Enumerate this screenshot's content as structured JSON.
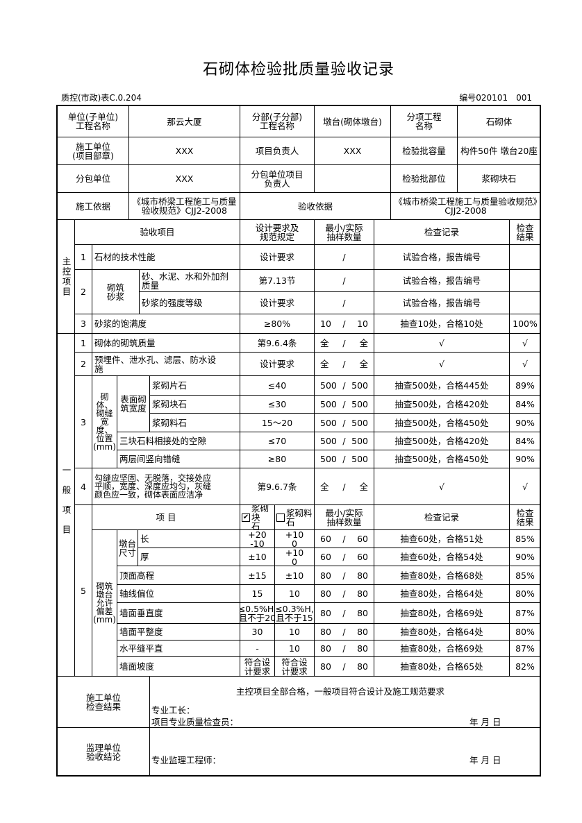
{
  "title": "石砌体检验批质量验收记录",
  "form_code": "质控(市政)表C.0.204",
  "serial": "编号020101　001",
  "info": {
    "unit_label": "单位(子单位)\n工程名称",
    "unit_value": "那云大厦",
    "division_label": "分部(子分部)\n工程名称",
    "division_value": "墩台(砌体墩台)",
    "subitem_label": "分项工程\n名称",
    "subitem_value": "石砌体",
    "contractor_label": "施工单位\n(项目部章)",
    "contractor_value": "XXX",
    "pm_label": "项目负责人",
    "pm_value": "XXX",
    "capacity_label": "检验批容量",
    "capacity_value": "构件50件  墩台20座",
    "sub_label": "分包单位",
    "sub_value": "XXX",
    "sub_pm_label": "分包单位项目\n负责人",
    "sub_pm_value": "",
    "part_label": "检验批部位",
    "part_value": "浆砌块石",
    "basis_label": "施工依据",
    "basis_value": "《城市桥梁工程施工与质量验收规范》CJJ2-2008",
    "accept_label": "验收依据",
    "accept_value": "《城市桥梁工程施工与质量验收规范》CJJ2-2008"
  },
  "columns": {
    "item": "验收项目",
    "design": "设计要求及\n规范规定",
    "sample": "最小/实际\n抽样数量",
    "record": "检查记录",
    "result": "检查\n结果",
    "sep": "/"
  },
  "main_control": {
    "label": "主控项目",
    "rows": [
      {
        "no": "1",
        "item": "石材的技术性能",
        "design": "设计要求",
        "sample": "/",
        "record": "试验合格，报告编号",
        "result": ""
      },
      {
        "no": "2",
        "group": "砌筑\n砂浆",
        "subs": [
          {
            "item": "砂、水泥、水和外加剂\n质量",
            "design": "第7.13节",
            "sample": "/",
            "record": "试验合格，报告编号",
            "result": ""
          },
          {
            "item": "砂浆的强度等级",
            "design": "设计要求",
            "sample": "/",
            "record": "试验合格，报告编号",
            "result": ""
          }
        ]
      },
      {
        "no": "3",
        "item": "砂浆的饱满度",
        "design": "≥80%",
        "sample": [
          "10",
          "10"
        ],
        "record": "抽查10处，合格10处",
        "result": "100%"
      }
    ]
  },
  "general": {
    "label": "一般项目",
    "rows": [
      {
        "no": "1",
        "item": "砌体的砌筑质量",
        "design": "第9.6.4条",
        "sample": [
          "全",
          "全"
        ],
        "record": "√",
        "result": "√"
      },
      {
        "no": "2",
        "item": "预埋件、泄水孔、滤层、防水设\n施",
        "design": "设计要求",
        "sample": [
          "全",
          "全"
        ],
        "record": "√",
        "result": "√"
      },
      {
        "no": "3",
        "group": "砌体、砌缝宽度、位置(mm)",
        "subgroup": "表面砌\n筑宽度",
        "subs": [
          {
            "item": "浆砌片石",
            "design": "≤40",
            "sample": [
              "500",
              "500"
            ],
            "record": "抽查500处，合格445处",
            "result": "89%"
          },
          {
            "item": "浆砌块石",
            "design": "≤30",
            "sample": [
              "500",
              "500"
            ],
            "record": "抽查500处，合格420处",
            "result": "84%"
          },
          {
            "item": "浆砌料石",
            "design": "15～20",
            "sample": [
              "500",
              "500"
            ],
            "record": "抽查500处，合格450处",
            "result": "90%"
          },
          {
            "item": "三块石料相接处的空隙",
            "design": "≤70",
            "sample": [
              "500",
              "500"
            ],
            "record": "抽查500处，合格420处",
            "result": "84%"
          },
          {
            "item": "两层间竖向错缝",
            "design": "≥80",
            "sample": [
              "500",
              "500"
            ],
            "record": "抽查500处，合格450处",
            "result": "90%"
          }
        ]
      },
      {
        "no": "4",
        "item": "勾缝应坚固、无脱落，交接处应\n平顺，宽度、深度应均匀，灰缝\n颜色应一致，砌体表面应洁净",
        "design": "第9.6.7条",
        "sample": [
          "全",
          "全"
        ],
        "record": "√",
        "result": "√"
      },
      {
        "no": "5",
        "header": {
          "item": "项  目",
          "opt1": "浆砌块\n石",
          "opt1_checked": true,
          "opt2": "浆砌料\n石",
          "opt2_checked": false
        },
        "group": "砌筑墩台允许偏差(mm)",
        "subgroup": "墩台\n尺寸",
        "subs": [
          {
            "item": "长",
            "d1": "+20\n-10",
            "d2": "+10\n0",
            "sample": [
              "60",
              "60"
            ],
            "record": "抽查60处，合格51处",
            "result": "85%"
          },
          {
            "item": "厚",
            "d1": "±10",
            "d2": "+10\n0",
            "sample": [
              "60",
              "60"
            ],
            "record": "抽查60处，合格54处",
            "result": "90%"
          },
          {
            "item": "顶面高程",
            "d1": "±15",
            "d2": "±10",
            "sample": [
              "80",
              "80"
            ],
            "record": "抽查80处，合格68处",
            "result": "85%"
          },
          {
            "item": "轴线偏位",
            "d1": "15",
            "d2": "10",
            "sample": [
              "80",
              "80"
            ],
            "record": "抽查80处，合格64处",
            "result": "80%"
          },
          {
            "item": "墙面垂直度",
            "d1": "≤0.5%H,\n且不于20",
            "d2": "≤0.3%H,\n且不于15",
            "sample": [
              "80",
              "80"
            ],
            "record": "抽查80处，合格69处",
            "result": "87%"
          },
          {
            "item": "墙面平整度",
            "d1": "30",
            "d2": "10",
            "sample": [
              "80",
              "80"
            ],
            "record": "抽查80处，合格64处",
            "result": "80%"
          },
          {
            "item": "水平缝平直",
            "d1": "-",
            "d2": "10",
            "sample": [
              "80",
              "80"
            ],
            "record": "抽查80处，合格69处",
            "result": "87%"
          },
          {
            "item": "墙面坡度",
            "d1": "符合设\n计要求",
            "d2": "符合设\n计要求",
            "sample": [
              "80",
              "80"
            ],
            "record": "抽查80处，合格65处",
            "result": "82%"
          }
        ]
      }
    ]
  },
  "contractor_check": {
    "label": "施工单位\n检查结果",
    "conclusion": "主控项目全部合格，一般项目符合设计及施工规范要求",
    "foreman": "专业工长：",
    "inspector": "项目专业质量检查员：",
    "date": "年    月    日"
  },
  "supervisor_check": {
    "label": "监理单位\n验收结论",
    "engineer": "专业监理工程师：",
    "date": "年    月    日"
  }
}
